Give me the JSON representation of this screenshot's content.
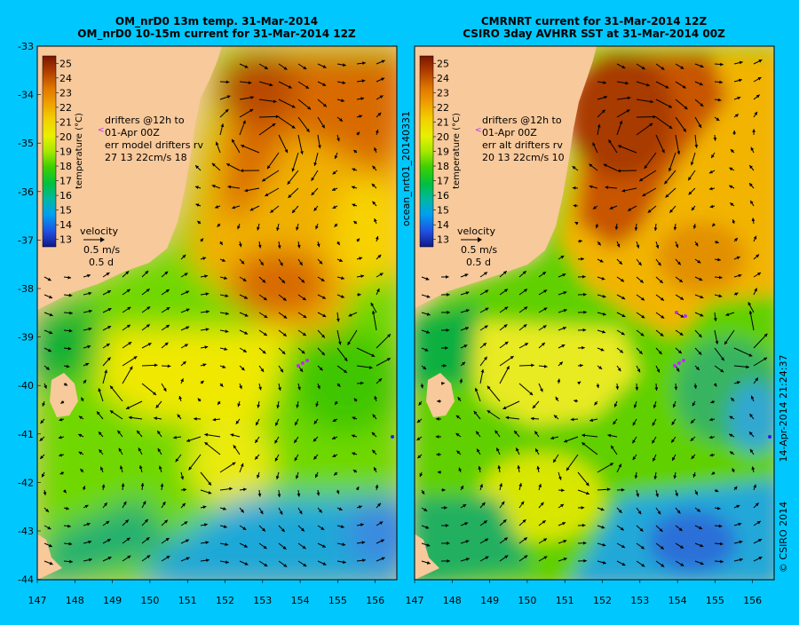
{
  "page": {
    "background": "#00c8ff"
  },
  "panels": [
    {
      "id": "left",
      "title_line1": "OM_nrD0 13m temp. 31-Mar-2014",
      "title_line2": "OM_nrD0 10-15m current for 31-Mar-2014 12Z",
      "legend_lines": [
        "drifters @12h to",
        "01-Apr 00Z",
        "err model drifters rv",
        "27 13 22cm/s 18"
      ]
    },
    {
      "id": "right",
      "title_line1": "CMRNRT current for 31-Mar-2014 12Z",
      "title_line2": "CSIRO 3day AVHRR SST at 31-Mar-2014 00Z",
      "legend_lines": [
        "drifters @12h to",
        "01-Apr 00Z",
        "err alt drifters rv",
        "20 13 22cm/s 10"
      ]
    }
  ],
  "colorbar": {
    "ticks": [
      "25",
      "24",
      "23",
      "22",
      "21",
      "20",
      "19",
      "18",
      "17",
      "16",
      "15",
      "14",
      "13"
    ],
    "label": "temperature (°C)"
  },
  "velocity_key": {
    "title": "velocity",
    "speed": "0.5 m/s",
    "duration": "0.5 d"
  },
  "axes": {
    "lat_ticks": [
      "-33",
      "-34",
      "-35",
      "-36",
      "-37",
      "-38",
      "-39",
      "-40",
      "-41",
      "-42",
      "-43",
      "-44"
    ],
    "lon_ticks": [
      "147",
      "148",
      "149",
      "150",
      "151",
      "152",
      "153",
      "154",
      "155",
      "156"
    ]
  },
  "side_labels": {
    "middle": "ocean_nrt01_20140331",
    "right_date": "14-Apr-2014 21:24:37",
    "right_copyright": "© CSIRO 2014"
  },
  "colors": {
    "land": "#f8c99b",
    "arrow": "#000000",
    "drifter": "#b030ff"
  }
}
